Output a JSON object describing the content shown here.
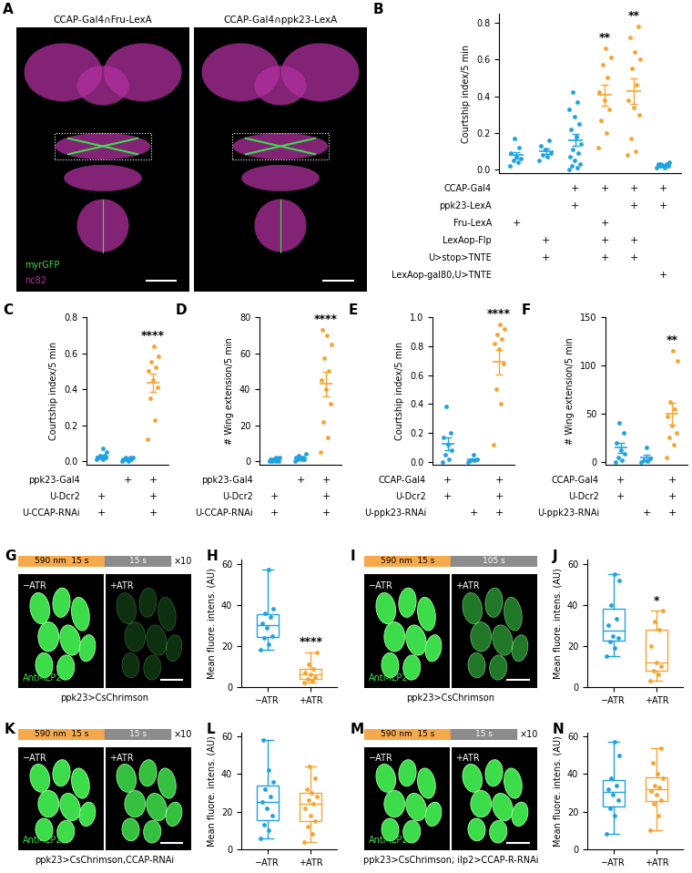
{
  "chart_data": [
    {
      "panel": "A",
      "type": "image",
      "images": [
        {
          "title": "CCAP-Gal4∩Fru-LexA"
        },
        {
          "title": "CCAP-Gal4∩ppk23-LexA"
        }
      ],
      "channels": [
        {
          "name": "myrGFP",
          "color": "#3ddc4a"
        },
        {
          "name": "nc82",
          "color": "#b0309f"
        }
      ]
    },
    {
      "panel": "B",
      "type": "dot",
      "ylabel": "Courtship index/5 min",
      "categories": [
        null,
        null,
        null,
        null,
        null,
        null
      ],
      "tick_labels": "y",
      "values": [
        [
          0.02,
          0.04,
          0.05,
          0.06,
          0.07,
          0.09,
          0.12,
          0.17
        ],
        [
          0.05,
          0.07,
          0.08,
          0.09,
          0.11,
          0.13,
          0.16
        ],
        [
          0.0,
          0.01,
          0.02,
          0.03,
          0.05,
          0.07,
          0.09,
          0.11,
          0.14,
          0.18,
          0.22,
          0.25,
          0.29,
          0.33,
          0.37,
          0.42
        ],
        [
          0.12,
          0.2,
          0.27,
          0.33,
          0.38,
          0.42,
          0.5,
          0.57,
          0.61,
          0.66
        ],
        [
          0.08,
          0.1,
          0.17,
          0.3,
          0.34,
          0.38,
          0.46,
          0.55,
          0.6,
          0.64,
          0.72,
          0.78
        ],
        [
          0.01,
          0.01,
          0.02,
          0.02,
          0.02,
          0.03,
          0.03,
          0.03,
          0.04
        ]
      ],
      "colors": [
        "#1fa3e0",
        "#1fa3e0",
        "#1fa3e0",
        "#f7a531",
        "#f7a531",
        "#1fa3e0"
      ],
      "significance": [
        null,
        null,
        null,
        "**",
        "**",
        null
      ],
      "ylim": [
        -0.02,
        0.85
      ],
      "yticks": [
        {
          "value": 0,
          "label": "0.0"
        },
        0.2,
        0.4,
        0.6,
        0.8
      ],
      "genotype": {
        "mark": "+",
        "rows": [
          {
            "label": "CCAP-Gal4",
            "present": [
              false,
              false,
              true,
              true,
              true,
              true
            ]
          },
          {
            "label": "ppk23-LexA",
            "present": [
              false,
              false,
              true,
              false,
              true,
              true
            ]
          },
          {
            "label": "Fru-LexA",
            "present": [
              true,
              false,
              false,
              true,
              false,
              false
            ]
          },
          {
            "label": "LexAop-Flp",
            "present": [
              false,
              true,
              false,
              true,
              true,
              false
            ]
          },
          {
            "label": "U>stop>TNTE",
            "present": [
              false,
              true,
              false,
              true,
              true,
              false
            ]
          },
          {
            "label": "LexAop-gal80,U>TNTE",
            "present": [
              false,
              false,
              false,
              false,
              false,
              true
            ]
          }
        ]
      }
    },
    {
      "panel": "C",
      "type": "dot",
      "ylabel": "Courtship index/5 min",
      "categories": [
        null,
        null,
        null
      ],
      "tick_labels": "y",
      "values": [
        [
          0.01,
          0.01,
          0.02,
          0.02,
          0.02,
          0.02,
          0.03,
          0.03,
          0.05,
          0.07
        ],
        [
          0.0,
          0.0,
          0.01,
          0.01,
          0.01,
          0.01,
          0.02,
          0.02,
          0.02
        ],
        [
          0.12,
          0.23,
          0.35,
          0.41,
          0.45,
          0.5,
          0.52,
          0.55,
          0.58,
          0.64
        ]
      ],
      "colors": [
        "#1fa3e0",
        "#1fa3e0",
        "#f7a531"
      ],
      "significance": [
        null,
        null,
        "****"
      ],
      "ylim": [
        -0.02,
        0.8
      ],
      "yticks": [
        {
          "value": 0,
          "label": "0.0"
        },
        0.2,
        0.4,
        0.6,
        0.8
      ],
      "genotype": {
        "mark": "+",
        "rows": [
          {
            "label": "ppk23-Gal4",
            "present": [
              false,
              true,
              true
            ]
          },
          {
            "label": "U-Dcr2",
            "present": [
              true,
              false,
              true
            ]
          },
          {
            "label": "U-CCAP-RNAi",
            "present": [
              true,
              false,
              true
            ]
          }
        ]
      }
    },
    {
      "panel": "D",
      "type": "dot",
      "ylabel": "# Wing extension/5 min",
      "categories": [
        null,
        null,
        null
      ],
      "tick_labels": "y",
      "values": [
        [
          0,
          0,
          0,
          0,
          1,
          1,
          1,
          1,
          2,
          2
        ],
        [
          0,
          1,
          1,
          1,
          2,
          2,
          2,
          3,
          4
        ],
        [
          5,
          13,
          22,
          32,
          40,
          45,
          50,
          57,
          65,
          70,
          73
        ]
      ],
      "colors": [
        "#1fa3e0",
        "#1fa3e0",
        "#f7a531"
      ],
      "significance": [
        null,
        null,
        "****"
      ],
      "ylim": [
        -2,
        80
      ],
      "yticks": [
        0,
        20,
        40,
        60,
        80
      ],
      "genotype": {
        "mark": "+",
        "rows": [
          {
            "label": "ppk23-Gal4",
            "present": [
              false,
              true,
              true
            ]
          },
          {
            "label": "U-Dcr2",
            "present": [
              true,
              false,
              true
            ]
          },
          {
            "label": "U-CCAP-RNAi",
            "present": [
              true,
              false,
              true
            ]
          }
        ]
      }
    },
    {
      "panel": "E",
      "type": "dot",
      "ylabel": "Courtship index/5 min",
      "categories": [
        null,
        null,
        null
      ],
      "tick_labels": "y",
      "values": [
        [
          0.0,
          0.02,
          0.05,
          0.08,
          0.12,
          0.17,
          0.2,
          0.38
        ],
        [
          0.0,
          0.01,
          0.01,
          0.02,
          0.05
        ],
        [
          0.12,
          0.4,
          0.5,
          0.68,
          0.78,
          0.82,
          0.85,
          0.88,
          0.92,
          0.95
        ]
      ],
      "colors": [
        "#1fa3e0",
        "#1fa3e0",
        "#f7a531"
      ],
      "significance": [
        null,
        null,
        "****"
      ],
      "ylim": [
        -0.02,
        1.0
      ],
      "yticks": [
        {
          "value": 0,
          "label": "0.0"
        },
        0.2,
        0.4,
        0.6,
        0.8,
        {
          "value": 1,
          "label": "1.0"
        }
      ],
      "genotype": {
        "mark": "+",
        "rows": [
          {
            "label": "CCAP-Gal4",
            "present": [
              true,
              false,
              true
            ]
          },
          {
            "label": "U-Dcr2",
            "present": [
              true,
              false,
              true
            ]
          },
          {
            "label": "U-ppk23-RNAi",
            "present": [
              false,
              true,
              true
            ]
          }
        ]
      }
    },
    {
      "panel": "F",
      "type": "dot",
      "ylabel": "# Wing extension/5 min",
      "categories": [
        null,
        null,
        null
      ],
      "tick_labels": "y",
      "values": [
        [
          0,
          2,
          5,
          8,
          12,
          20,
          30,
          40
        ],
        [
          0,
          1,
          2,
          4,
          15
        ],
        [
          5,
          18,
          25,
          30,
          38,
          47,
          55,
          62,
          105,
          115
        ]
      ],
      "colors": [
        "#1fa3e0",
        "#1fa3e0",
        "#f7a531"
      ],
      "significance": [
        null,
        null,
        "**"
      ],
      "ylim": [
        -3,
        150
      ],
      "yticks": [
        0,
        50,
        100,
        150
      ],
      "genotype": {
        "mark": "+",
        "rows": [
          {
            "label": "CCAP-Gal4",
            "present": [
              true,
              false,
              true
            ]
          },
          {
            "label": "U-Dcr2",
            "present": [
              true,
              false,
              true
            ]
          },
          {
            "label": "U-ppk23-RNAi",
            "present": [
              false,
              true,
              true
            ]
          }
        ]
      }
    },
    {
      "panel": "G",
      "type": "image",
      "stimulus": {
        "on_label": "590 nm  15 s",
        "off_label": "15 s",
        "repeat": "×10"
      },
      "conditions": [
        "−ATR",
        "+ATR"
      ],
      "stain": "Anti-ILP2",
      "genotype": "ppk23>CsChrimson"
    },
    {
      "panel": "H",
      "type": "box",
      "ylabel": "Mean fluore. intens. (AU)",
      "categories": [
        "−ATR",
        "+ATR"
      ],
      "values": [
        [
          18,
          21,
          24,
          25,
          29,
          31,
          34,
          36,
          38,
          57
        ],
        [
          2,
          3,
          4,
          5,
          6,
          7,
          9,
          11,
          17
        ]
      ],
      "colors": [
        "#1fa3e0",
        "#f7a531"
      ],
      "significance": [
        null,
        "****"
      ],
      "ylim": [
        0,
        62
      ],
      "yticks": [
        0,
        20,
        40,
        60
      ]
    },
    {
      "panel": "I",
      "type": "image",
      "stimulus": {
        "on_label": "590 nm  15 s",
        "off_label": "105 s"
      },
      "conditions": [
        "−ATR",
        "+ATR"
      ],
      "stain": "Anti-ILP2",
      "genotype": "ppk23>CsChrimson"
    },
    {
      "panel": "J",
      "type": "box",
      "ylabel": "Mean fluore. intens. (AU)",
      "categories": [
        "−ATR",
        "+ATR"
      ],
      "values": [
        [
          15,
          19,
          22,
          24,
          25,
          30,
          33,
          40,
          52,
          55
        ],
        [
          3,
          6,
          8,
          10,
          12,
          20,
          28,
          32,
          37
        ]
      ],
      "colors": [
        "#1fa3e0",
        "#f7a531"
      ],
      "significance": [
        null,
        "*"
      ],
      "ylim": [
        0,
        62
      ],
      "yticks": [
        0,
        20,
        40,
        60
      ]
    },
    {
      "panel": "K",
      "type": "image",
      "stimulus": {
        "on_label": "590 nm  15 s",
        "off_label": "15 s",
        "repeat": "×10"
      },
      "conditions": [
        "−ATR",
        "+ATR"
      ],
      "stain": "Anti-ILP2",
      "genotype": "ppk23>CsChrimson,CCAP-RNAi"
    },
    {
      "panel": "L",
      "type": "box",
      "ylabel": "Mean fluore. intens. (AU)",
      "categories": [
        "−ATR",
        "+ATR"
      ],
      "values": [
        [
          6,
          10,
          13,
          18,
          22,
          25,
          28,
          32,
          36,
          42,
          58
        ],
        [
          4,
          8,
          12,
          15,
          18,
          22,
          24,
          26,
          28,
          30,
          32,
          38,
          44
        ]
      ],
      "colors": [
        "#1fa3e0",
        "#f7a531"
      ],
      "significance": [
        null,
        null
      ],
      "ylim": [
        0,
        62
      ],
      "yticks": [
        0,
        20,
        40,
        60
      ]
    },
    {
      "panel": "M",
      "type": "image",
      "stimulus": {
        "on_label": "590 nm  15 s",
        "off_label": "15 s",
        "repeat": "×10"
      },
      "conditions": [
        "−ATR",
        "+ATR"
      ],
      "stain": "Anti-ILP2",
      "genotype": "ppk23>CsChrimson; ilp2>CCAP-R-RNAi"
    },
    {
      "panel": "N",
      "type": "box",
      "ylabel": "Mean fluore. intens. (AU)",
      "categories": [
        "−ATR",
        "+ATR"
      ],
      "values": [
        [
          8,
          18,
          22,
          26,
          29,
          32,
          34,
          38,
          50,
          57
        ],
        [
          10,
          18,
          24,
          26,
          29,
          31,
          33,
          34,
          38,
          40,
          46,
          54
        ]
      ],
      "colors": [
        "#1fa3e0",
        "#f7a531"
      ],
      "significance": [
        null,
        null
      ],
      "ylim": [
        0,
        62
      ],
      "yticks": [
        0,
        20,
        40,
        60
      ]
    }
  ]
}
